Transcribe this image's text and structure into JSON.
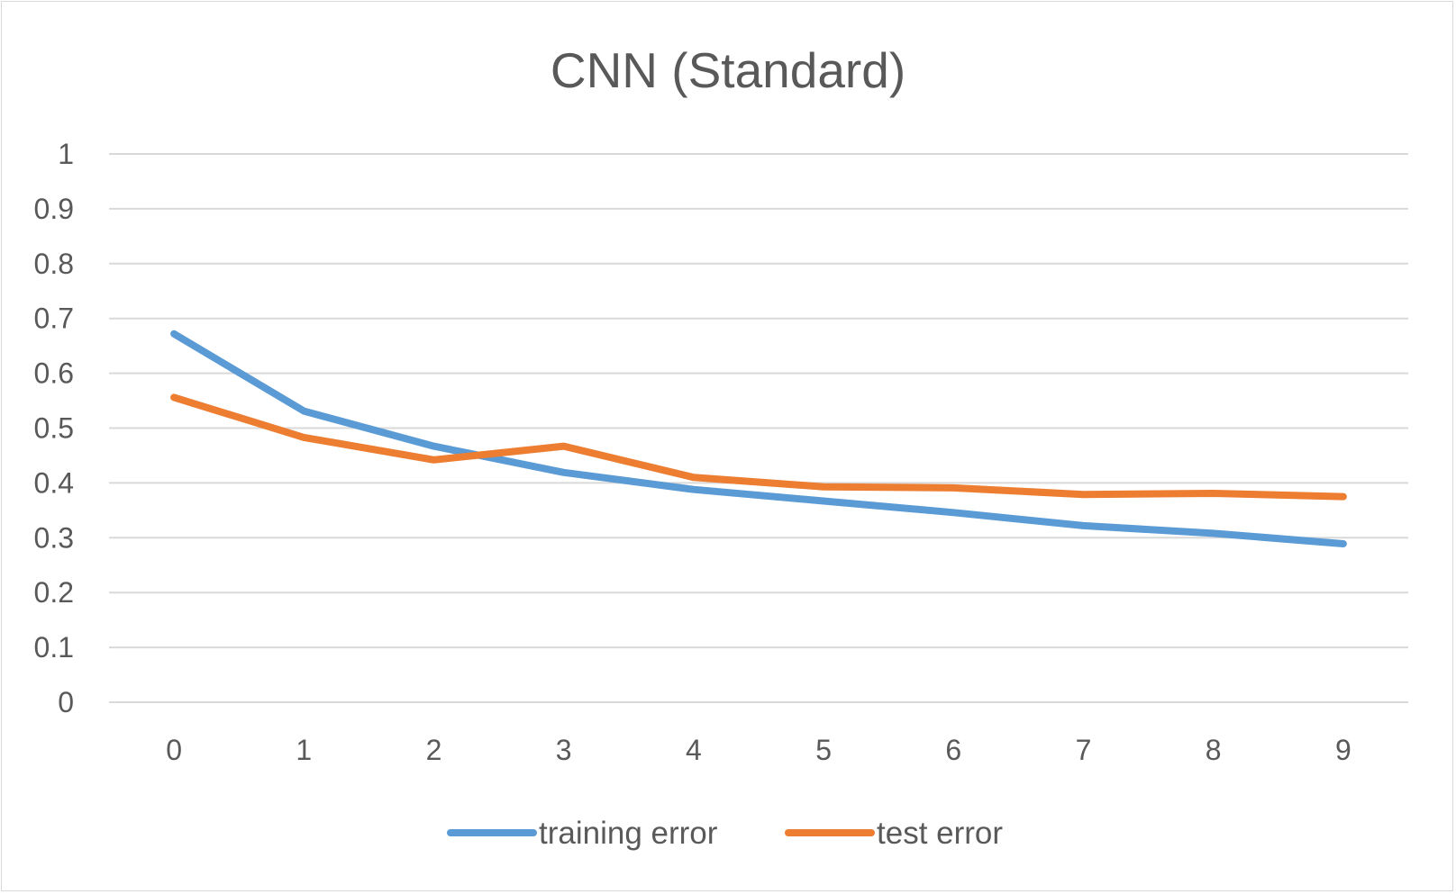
{
  "chart_data": {
    "type": "line",
    "title": "CNN (Standard)",
    "xlabel": "",
    "ylabel": "",
    "categories": [
      "0",
      "1",
      "2",
      "3",
      "4",
      "5",
      "6",
      "7",
      "8",
      "9"
    ],
    "ylim": [
      0,
      1
    ],
    "yticks": [
      "0",
      "0.1",
      "0.2",
      "0.3",
      "0.4",
      "0.5",
      "0.6",
      "0.7",
      "0.8",
      "0.9",
      "1"
    ],
    "grid": true,
    "legend_position": "bottom",
    "series": [
      {
        "name": "training error",
        "color": "#5b9bd5",
        "values": [
          0.672,
          0.531,
          0.467,
          0.419,
          0.388,
          0.367,
          0.346,
          0.322,
          0.308,
          0.289
        ]
      },
      {
        "name": "test error",
        "color": "#ed7d31",
        "values": [
          0.556,
          0.483,
          0.442,
          0.467,
          0.41,
          0.393,
          0.391,
          0.379,
          0.381,
          0.375
        ]
      }
    ]
  }
}
